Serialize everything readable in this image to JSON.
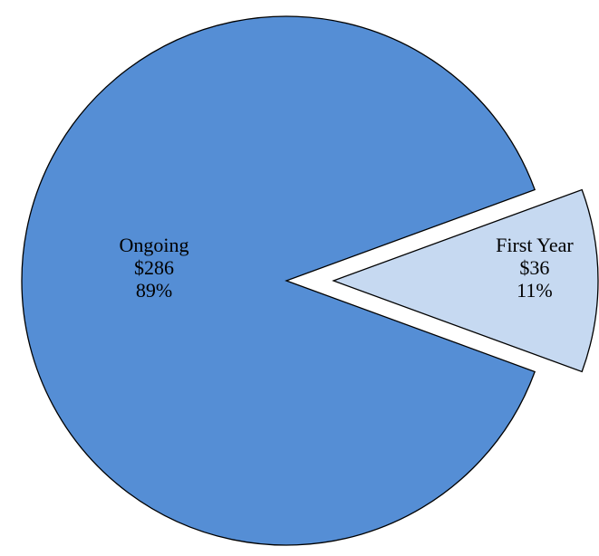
{
  "chart_data": {
    "type": "pie",
    "categories": [
      "Ongoing",
      "First Year"
    ],
    "values": [
      286,
      36
    ],
    "value_labels": [
      "$286",
      "$36"
    ],
    "percent_labels": [
      "89%",
      "11%"
    ],
    "colors": [
      "#558ed5",
      "#c6d9f1"
    ],
    "exploded": [
      false,
      true
    ]
  }
}
